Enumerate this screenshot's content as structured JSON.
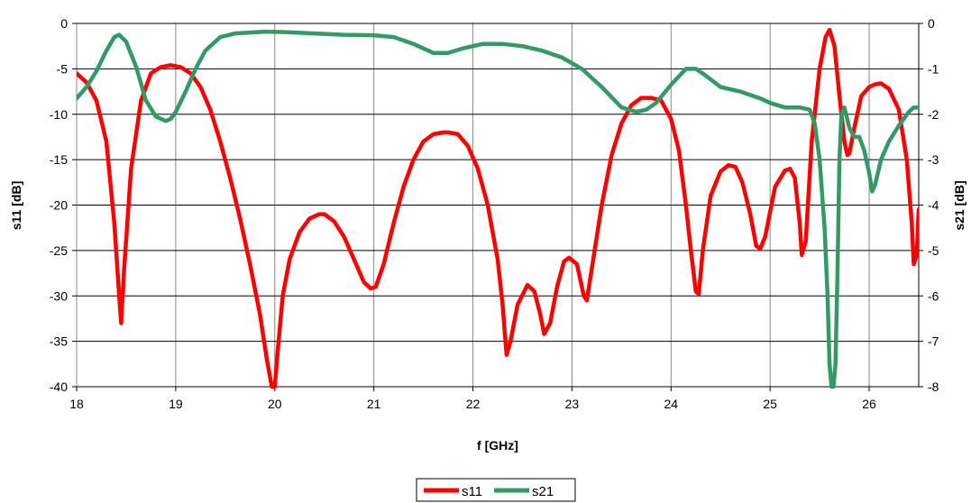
{
  "chart_data": {
    "type": "line",
    "title": "",
    "xlabel": "f [GHz]",
    "ylabel": "s11 [dB]",
    "y2label": "s21 [dB]",
    "xlim": [
      18,
      26.5
    ],
    "ylim": [
      -40,
      0
    ],
    "y2lim": [
      -8,
      0
    ],
    "xticks": [
      "18",
      "19",
      "20",
      "21",
      "22",
      "23",
      "24",
      "25",
      "26"
    ],
    "yticks": [
      "0",
      "-5",
      "-10",
      "-15",
      "-20",
      "-25",
      "-30",
      "-35",
      "-40"
    ],
    "y2ticks": [
      "0",
      "-1",
      "-2",
      "-3",
      "-4",
      "-5",
      "-6",
      "-7",
      "-8"
    ],
    "grid": true,
    "legend_position": "bottom-center",
    "colors": {
      "s11": "#ff0000",
      "s21": "#339966"
    },
    "series": [
      {
        "name": "s11",
        "axis": "left",
        "x": [
          18.0,
          18.1,
          18.2,
          18.3,
          18.38,
          18.43,
          18.45,
          18.48,
          18.55,
          18.65,
          18.75,
          18.85,
          18.95,
          19.05,
          19.15,
          19.25,
          19.35,
          19.45,
          19.55,
          19.65,
          19.75,
          19.85,
          19.92,
          19.97,
          20.0,
          20.03,
          20.08,
          20.15,
          20.25,
          20.35,
          20.45,
          20.5,
          20.6,
          20.7,
          20.8,
          20.9,
          20.97,
          21.02,
          21.1,
          21.2,
          21.3,
          21.4,
          21.5,
          21.6,
          21.7,
          21.75,
          21.85,
          21.95,
          22.05,
          22.15,
          22.25,
          22.3,
          22.34,
          22.38,
          22.45,
          22.55,
          22.62,
          22.68,
          22.72,
          22.78,
          22.85,
          22.92,
          22.97,
          23.05,
          23.12,
          23.15,
          23.2,
          23.3,
          23.4,
          23.5,
          23.6,
          23.7,
          23.8,
          23.9,
          24.0,
          24.08,
          24.15,
          24.2,
          24.25,
          24.28,
          24.32,
          24.4,
          24.5,
          24.58,
          24.65,
          24.72,
          24.8,
          24.86,
          24.9,
          24.95,
          25.05,
          25.15,
          25.2,
          25.25,
          25.3,
          25.32,
          25.36,
          25.42,
          25.5,
          25.56,
          25.6,
          25.65,
          25.7,
          25.75,
          25.78,
          25.8,
          25.85,
          25.92,
          26.0,
          26.06,
          26.12,
          26.2,
          26.3,
          26.38,
          26.43,
          26.45,
          26.48,
          26.5
        ],
        "y": [
          -5.5,
          -6.5,
          -8.5,
          -13,
          -22,
          -30,
          -33,
          -27,
          -16,
          -8.5,
          -5.5,
          -4.8,
          -4.6,
          -4.8,
          -5.5,
          -7,
          -9.5,
          -13,
          -17,
          -21.5,
          -26.5,
          -32,
          -37,
          -40,
          -40,
          -36,
          -30,
          -26,
          -23,
          -21.5,
          -21,
          -21,
          -21.8,
          -23.5,
          -26,
          -28.5,
          -29.2,
          -29,
          -26.5,
          -22,
          -18,
          -15,
          -13,
          -12.2,
          -12,
          -12,
          -12.2,
          -13.5,
          -16,
          -20,
          -26,
          -31,
          -36.5,
          -35,
          -31,
          -28.8,
          -29.5,
          -32,
          -34.2,
          -33,
          -29,
          -26.2,
          -25.8,
          -26.5,
          -30,
          -30.5,
          -27,
          -20,
          -14.5,
          -11,
          -9,
          -8.2,
          -8.2,
          -8.5,
          -10.5,
          -14,
          -20,
          -25,
          -29.5,
          -29.8,
          -25,
          -19,
          -16.3,
          -15.6,
          -15.8,
          -17.5,
          -21,
          -24.5,
          -24.8,
          -23.5,
          -18,
          -16.2,
          -16,
          -17,
          -22,
          -25.5,
          -24,
          -13,
          -5,
          -1.5,
          -0.7,
          -2.5,
          -8,
          -13,
          -14.5,
          -14.3,
          -11.5,
          -8,
          -7,
          -6.7,
          -6.6,
          -7.2,
          -9.5,
          -15,
          -22,
          -26.5,
          -25.5,
          -20.5
        ]
      },
      {
        "name": "s21",
        "axis": "right",
        "x": [
          18.0,
          18.1,
          18.2,
          18.3,
          18.38,
          18.43,
          18.5,
          18.6,
          18.7,
          18.8,
          18.9,
          18.95,
          19.0,
          19.1,
          19.2,
          19.3,
          19.45,
          19.6,
          19.75,
          19.9,
          20.1,
          20.4,
          20.7,
          21.0,
          21.2,
          21.4,
          21.6,
          21.75,
          21.9,
          22.1,
          22.3,
          22.5,
          22.7,
          22.9,
          23.1,
          23.3,
          23.5,
          23.65,
          23.75,
          23.85,
          24.0,
          24.15,
          24.25,
          24.35,
          24.5,
          24.7,
          24.9,
          25.0,
          25.15,
          25.3,
          25.4,
          25.45,
          25.5,
          25.55,
          25.58,
          25.6,
          25.62,
          25.64,
          25.66,
          25.68,
          25.7,
          25.72,
          25.75,
          25.8,
          25.85,
          25.9,
          25.95,
          26.0,
          26.03,
          26.06,
          26.12,
          26.2,
          26.3,
          26.4,
          26.45,
          26.5
        ],
        "y": [
          -1.65,
          -1.4,
          -1.05,
          -0.6,
          -0.3,
          -0.25,
          -0.4,
          -0.95,
          -1.7,
          -2.05,
          -2.15,
          -2.1,
          -1.95,
          -1.5,
          -1.0,
          -0.6,
          -0.3,
          -0.22,
          -0.2,
          -0.18,
          -0.19,
          -0.22,
          -0.25,
          -0.26,
          -0.3,
          -0.45,
          -0.65,
          -0.65,
          -0.55,
          -0.45,
          -0.45,
          -0.5,
          -0.6,
          -0.75,
          -1.0,
          -1.4,
          -1.85,
          -1.95,
          -1.9,
          -1.75,
          -1.35,
          -1.0,
          -1.0,
          -1.15,
          -1.4,
          -1.5,
          -1.65,
          -1.75,
          -1.85,
          -1.85,
          -1.9,
          -2.2,
          -3.0,
          -4.5,
          -6.0,
          -7.5,
          -8.0,
          -8.0,
          -7.5,
          -5.5,
          -3.0,
          -2.0,
          -1.85,
          -2.3,
          -2.5,
          -2.5,
          -2.8,
          -3.3,
          -3.7,
          -3.55,
          -3.0,
          -2.6,
          -2.25,
          -1.95,
          -1.85,
          -1.85
        ]
      }
    ]
  }
}
